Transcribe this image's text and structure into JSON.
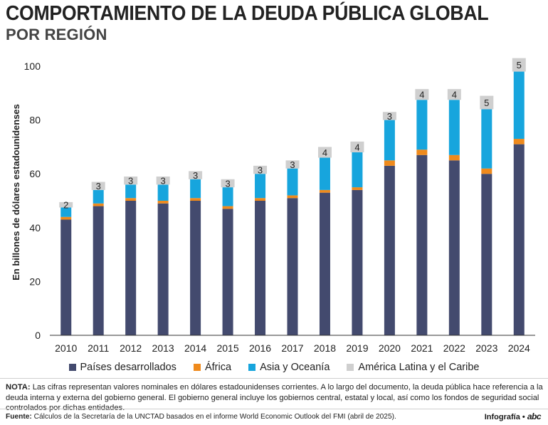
{
  "header": {
    "title": "COMPORTAMIENTO DE LA DEUDA PÚBLICA GLOBAL",
    "subtitle": "POR REGIÓN"
  },
  "colors": {
    "desarrollados": "#434a6e",
    "africa": "#ef8a1c",
    "asia": "#17a5dd",
    "latam": "#cfcfcf",
    "axis": "#333333"
  },
  "chart_data": {
    "type": "bar",
    "stacked": true,
    "categories": [
      "2010",
      "2011",
      "2012",
      "2013",
      "2014",
      "2015",
      "2016",
      "2017",
      "2018",
      "2019",
      "2020",
      "2021",
      "2022",
      "2023",
      "2024"
    ],
    "series": [
      {
        "name": "Países desarrollados",
        "values": [
          43,
          48,
          50,
          49,
          50,
          47,
          50,
          51,
          53,
          54,
          63,
          67,
          65,
          60,
          71
        ]
      },
      {
        "name": "África",
        "values": [
          1,
          1,
          1,
          1,
          1,
          1,
          1,
          1,
          1,
          1,
          2,
          2,
          2,
          2,
          2
        ]
      },
      {
        "name": "Asia y Oceanía",
        "values": [
          3.5,
          5,
          5,
          6,
          7,
          7,
          9,
          10,
          12,
          13,
          15,
          18.5,
          20.5,
          22,
          25
        ]
      },
      {
        "name": "América Latina y el Caribe",
        "values": [
          2,
          3,
          3,
          3,
          3,
          3,
          3,
          3,
          4,
          4,
          3,
          4,
          4,
          5,
          5
        ]
      }
    ],
    "data_labels": [
      "2",
      "3",
      "3",
      "3",
      "3",
      "3",
      "3",
      "3",
      "4",
      "4",
      "3",
      "4",
      "4",
      "5",
      "5"
    ],
    "ylabel": "En billones de dólares estadounidenses",
    "xlabel": "",
    "ylim": [
      0,
      105
    ],
    "yticks": [
      0,
      20,
      40,
      60,
      80,
      100
    ],
    "grid": false,
    "legend_position": "bottom"
  },
  "legend": [
    {
      "label": "Países desarrollados",
      "color": "#434a6e"
    },
    {
      "label": "África",
      "color": "#ef8a1c"
    },
    {
      "label": "Asia y Oceanía",
      "color": "#17a5dd"
    },
    {
      "label": "América Latina y el Caribe",
      "color": "#cfcfcf"
    }
  ],
  "footer": {
    "note_label": "NOTA:",
    "note_text": " Las cifras representan valores nominales en dólares estadounidenses corrientes. A lo largo del documento, la deuda pública hace referencia a la deuda interna y externa del gobierno general. El gobierno general incluye los gobiernos central, estatal y local, así como los fondos de seguridad social controlados por dichas entidades.",
    "source_label": "Fuente:",
    "source_text": " Cálculos de la Secretaría de la UNCTAD basados en el informe World Economic Outlook del FMI (abril de 2025).",
    "credit_text": "Infografía •",
    "credit_logo": "abc"
  }
}
